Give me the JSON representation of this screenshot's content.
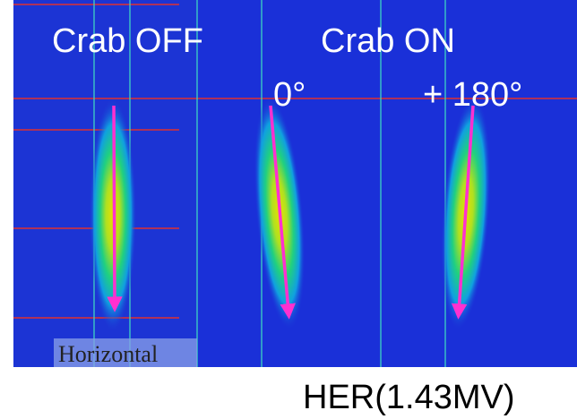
{
  "panels": {
    "left_title": "Crab OFF",
    "right_title": "Crab ON",
    "phase_zero": "0°",
    "phase_180": "+ 180°",
    "direction": "Horizontal"
  },
  "caption": "HER(1.43MV)"
}
